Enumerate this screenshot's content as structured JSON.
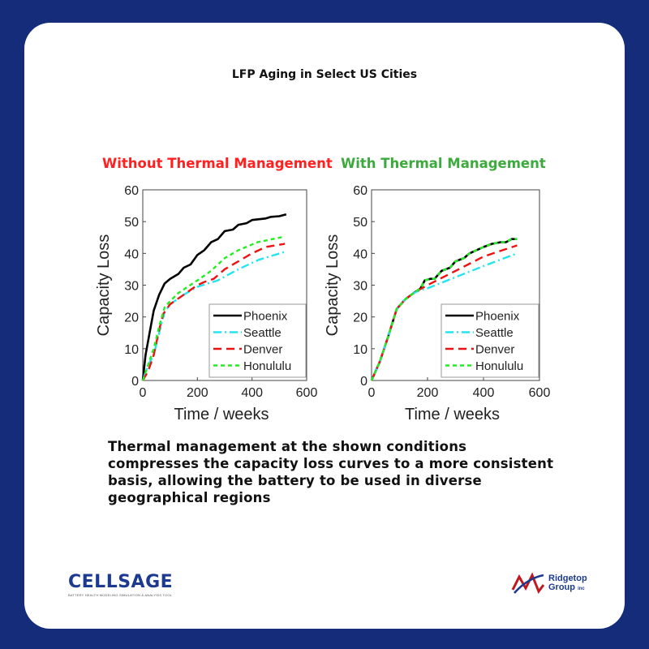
{
  "title": "LFP Aging in Select US Cities",
  "caption": "Thermal management at the shown conditions compresses the capacity loss  curves to a more consistent basis, allowing the battery to be used in diverse geographical regions",
  "colors": {
    "background": "#142c7a",
    "without": "#ff2020",
    "with": "#3daa3d"
  },
  "logos": {
    "cellsage": "CELLSAGE",
    "cellsage_tagline": "BATTERY HEALTH MODELING SIMULATION & ANALYSIS TOOL",
    "ridgetop_line1": "Ridgetop",
    "ridgetop_line2": "Group",
    "ridgetop_suffix": "inc"
  },
  "chart_data": [
    {
      "type": "line",
      "title": "Without Thermal Management",
      "xlabel": "Time / weeks",
      "ylabel": "Capacity Loss",
      "xlim": [
        0,
        600
      ],
      "ylim": [
        0,
        60
      ],
      "xticks": [
        "0",
        "200",
        "400",
        "600"
      ],
      "yticks": [
        "0",
        "10",
        "20",
        "30",
        "40",
        "50",
        "60"
      ],
      "legend": "bottom-right",
      "series": [
        {
          "name": "Phoenix",
          "color": "#000000",
          "dash": "solid",
          "points": [
            [
              0,
              0
            ],
            [
              10,
              8
            ],
            [
              25,
              15
            ],
            [
              40,
              22
            ],
            [
              60,
              27
            ],
            [
              80,
              30.5
            ],
            [
              100,
              32
            ],
            [
              130,
              33.5
            ],
            [
              150,
              35.5
            ],
            [
              175,
              36.5
            ],
            [
              200,
              39.5
            ],
            [
              225,
              41
            ],
            [
              250,
              43.5
            ],
            [
              275,
              44.5
            ],
            [
              300,
              47
            ],
            [
              330,
              47.5
            ],
            [
              350,
              49
            ],
            [
              380,
              49.5
            ],
            [
              400,
              50.5
            ],
            [
              450,
              51
            ],
            [
              470,
              51.5
            ],
            [
              500,
              51.7
            ],
            [
              525,
              52.3
            ]
          ]
        },
        {
          "name": "Seattle",
          "color": "#22e5f0",
          "dash": "dashdot",
          "points": [
            [
              0,
              0
            ],
            [
              20,
              5
            ],
            [
              40,
              8
            ],
            [
              60,
              15
            ],
            [
              80,
              21.5
            ],
            [
              100,
              24
            ],
            [
              150,
              27
            ],
            [
              200,
              29.5
            ],
            [
              275,
              31.5
            ],
            [
              350,
              35
            ],
            [
              425,
              38
            ],
            [
              520,
              40.5
            ]
          ]
        },
        {
          "name": "Denver",
          "color": "#ee1111",
          "dash": "dash",
          "points": [
            [
              0,
              0
            ],
            [
              20,
              3
            ],
            [
              40,
              8
            ],
            [
              60,
              16
            ],
            [
              75,
              21
            ],
            [
              100,
              24
            ],
            [
              150,
              27
            ],
            [
              200,
              30
            ],
            [
              225,
              31
            ],
            [
              260,
              32
            ],
            [
              300,
              35
            ],
            [
              350,
              37.5
            ],
            [
              400,
              40
            ],
            [
              450,
              42
            ],
            [
              520,
              43
            ]
          ]
        },
        {
          "name": "Honululu",
          "color": "#22ee22",
          "dash": "shortdash",
          "points": [
            [
              0,
              0
            ],
            [
              20,
              5
            ],
            [
              40,
              10
            ],
            [
              60,
              17
            ],
            [
              80,
              23
            ],
            [
              100,
              25
            ],
            [
              130,
              27.5
            ],
            [
              200,
              31.5
            ],
            [
              250,
              34.5
            ],
            [
              300,
              38.5
            ],
            [
              350,
              41
            ],
            [
              420,
              43.5
            ],
            [
              520,
              45.3
            ]
          ]
        }
      ]
    },
    {
      "type": "line",
      "title": "With Thermal Management",
      "xlabel": "Time / weeks",
      "ylabel": "Capacity Loss",
      "xlim": [
        0,
        600
      ],
      "ylim": [
        0,
        60
      ],
      "xticks": [
        "0",
        "200",
        "400",
        "600"
      ],
      "yticks": [
        "0",
        "10",
        "20",
        "30",
        "40",
        "50",
        "60"
      ],
      "legend": "bottom-right",
      "series": [
        {
          "name": "Phoenix",
          "color": "#000000",
          "dash": "solid",
          "points": [
            [
              0,
              0
            ],
            [
              30,
              6
            ],
            [
              60,
              14
            ],
            [
              90,
              22.5
            ],
            [
              120,
              25.5
            ],
            [
              150,
              27.5
            ],
            [
              175,
              29
            ],
            [
              190,
              31.5
            ],
            [
              210,
              32
            ],
            [
              225,
              32
            ],
            [
              250,
              34.5
            ],
            [
              280,
              35.5
            ],
            [
              300,
              37.5
            ],
            [
              330,
              38.5
            ],
            [
              350,
              40
            ],
            [
              400,
              42
            ],
            [
              430,
              43
            ],
            [
              460,
              43.5
            ],
            [
              480,
              43.5
            ],
            [
              500,
              44.5
            ],
            [
              520,
              44.5
            ]
          ]
        },
        {
          "name": "Seattle",
          "color": "#22e5f0",
          "dash": "dashdot",
          "points": [
            [
              0,
              0
            ],
            [
              30,
              6
            ],
            [
              60,
              14
            ],
            [
              90,
              22.5
            ],
            [
              120,
              25.5
            ],
            [
              150,
              27.5
            ],
            [
              175,
              28.5
            ],
            [
              200,
              29
            ],
            [
              300,
              32.5
            ],
            [
              400,
              36
            ],
            [
              520,
              40
            ]
          ]
        },
        {
          "name": "Denver",
          "color": "#ee1111",
          "dash": "dash",
          "points": [
            [
              0,
              0
            ],
            [
              30,
              6
            ],
            [
              60,
              14
            ],
            [
              90,
              22.5
            ],
            [
              120,
              25.5
            ],
            [
              150,
              27.5
            ],
            [
              175,
              28.8
            ],
            [
              200,
              30
            ],
            [
              300,
              34.5
            ],
            [
              400,
              39
            ],
            [
              450,
              40.5
            ],
            [
              520,
              42.5
            ]
          ]
        },
        {
          "name": "Honululu",
          "color": "#22ee22",
          "dash": "shortdash",
          "points": [
            [
              0,
              0
            ],
            [
              30,
              6
            ],
            [
              60,
              14
            ],
            [
              90,
              22.5
            ],
            [
              120,
              25.5
            ],
            [
              150,
              27.5
            ],
            [
              175,
              29
            ],
            [
              190,
              31.5
            ],
            [
              210,
              32
            ],
            [
              225,
              32
            ],
            [
              250,
              34.5
            ],
            [
              280,
              35.5
            ],
            [
              300,
              37.5
            ],
            [
              330,
              38.5
            ],
            [
              350,
              40
            ],
            [
              400,
              42
            ],
            [
              430,
              43
            ],
            [
              460,
              43.5
            ],
            [
              480,
              43.5
            ],
            [
              500,
              44.5
            ],
            [
              520,
              44.5
            ]
          ]
        }
      ]
    }
  ]
}
